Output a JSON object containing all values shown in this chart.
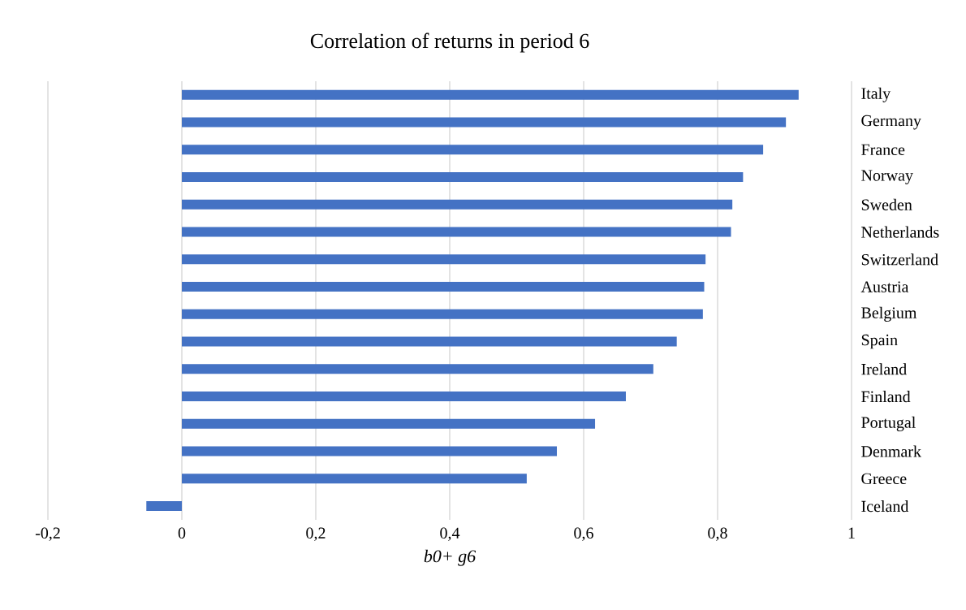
{
  "chart_data": {
    "type": "bar",
    "orientation": "horizontal",
    "title": "Correlation of returns in period 6",
    "xlabel": "b0+ g6",
    "categories": [
      "Italy",
      "Germany",
      "France",
      "Norway",
      "Sweden",
      "Netherlands",
      "Switzerland",
      "Austria",
      "Belgium",
      "Spain",
      "Ireland",
      "Finland",
      "Portugal",
      "Denmark",
      "Greece",
      "Iceland"
    ],
    "values": [
      0.921,
      0.902,
      0.868,
      0.838,
      0.822,
      0.82,
      0.782,
      0.78,
      0.778,
      0.739,
      0.704,
      0.663,
      0.617,
      0.56,
      0.515,
      -0.053
    ],
    "color": "#4472c4",
    "xlim": [
      -0.2,
      1
    ],
    "xticks": [
      {
        "value": -0.2,
        "label": "-0,2"
      },
      0,
      {
        "value": 0.2,
        "label": "0,2"
      },
      {
        "value": 0.4,
        "label": "0,4"
      },
      {
        "value": 0.6,
        "label": "0,6"
      },
      {
        "value": 0.8,
        "label": "0,8"
      },
      1
    ],
    "grid": "x"
  }
}
